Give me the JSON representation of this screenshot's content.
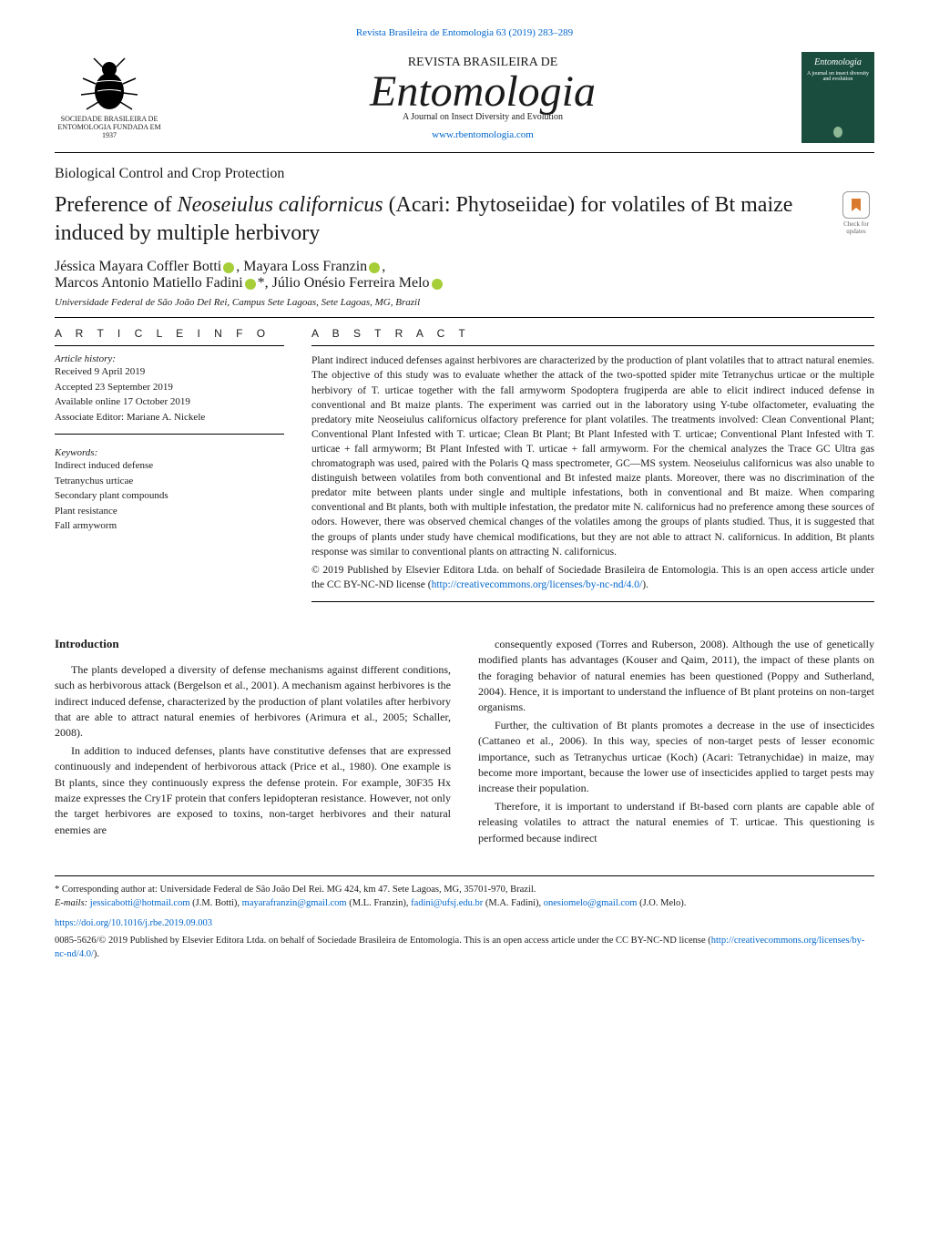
{
  "citation": "Revista Brasileira de Entomologia 63 (2019) 283–289",
  "journal": {
    "subtitle": "REVISTA BRASILEIRA DE",
    "main": "Entomologia",
    "tagline": "A Journal on Insect Diversity and Evolution",
    "url": "www.rbentomologia.com",
    "society": "SOCIEDADE BRASILEIRA DE ENTOMOLOGIA FUNDADA EM 1937",
    "cover_title": "Entomologia",
    "cover_tagline": "A journal on insect diversity and evolution"
  },
  "section": "Biological Control and Crop Protection",
  "title": "Preference of Neoseiulus californicus (Acari: Phytoseiidae) for volatiles of Bt maize induced by multiple herbivory",
  "check_updates": "Check for updates",
  "authors_line1": "Jéssica Mayara Coffler Botti , Mayara Loss Franzin ,",
  "authors_line2": "Marcos Antonio Matiello Fadini *, Júlio Onésio Ferreira Melo",
  "affiliation": "Universidade Federal de São João Del Rei, Campus Sete Lagoas, Sete Lagoas, MG, Brazil",
  "info": {
    "heading": "a r t i c l e   i n f o",
    "history_label": "Article history:",
    "received": "Received 9 April 2019",
    "accepted": "Accepted 23 September 2019",
    "online": "Available online 17 October 2019",
    "editor": "Associate Editor: Mariane A. Nickele",
    "keywords_label": "Keywords:",
    "keywords": [
      "Indirect induced defense",
      "Tetranychus urticae",
      "Secondary plant compounds",
      "Plant resistance",
      "Fall armyworm"
    ]
  },
  "abstract": {
    "heading": "a b s t r a c t",
    "text": "Plant indirect induced defenses against herbivores are characterized by the production of plant volatiles that to attract natural enemies. The objective of this study was to evaluate whether the attack of the two-spotted spider mite Tetranychus urticae or the multiple herbivory of T. urticae together with the fall armyworm Spodoptera frugiperda are able to elicit indirect induced defense in conventional and Bt maize plants. The experiment was carried out in the laboratory using Y-tube olfactometer, evaluating the predatory mite Neoseiulus californicus olfactory preference for plant volatiles. The treatments involved: Clean Conventional Plant; Conventional Plant Infested with T. urticae; Clean Bt Plant; Bt Plant Infested with T. urticae; Conventional Plant Infested with T. urticae + fall armyworm; Bt Plant Infested with T. urticae + fall armyworm. For the chemical analyzes the Trace GC Ultra gas chromatograph was used, paired with the Polaris Q mass spectrometer, GC—MS system. Neoseiulus californicus was also unable to distinguish between volatiles from both conventional and Bt infested maize plants. Moreover, there was no discrimination of the predator mite between plants under single and multiple infestations, both in conventional and Bt maize. When comparing conventional and Bt plants, both with multiple infestation, the predator mite N. californicus had no preference among these sources of odors. However, there was observed chemical changes of the volatiles among the groups of plants studied. Thus, it is suggested that the groups of plants under study have chemical modifications, but they are not able to attract N. californicus. In addition, Bt plants response was similar to conventional plants on attracting N. californicus.",
    "copyright_prefix": "© 2019 Published by Elsevier Editora Ltda. on behalf of Sociedade Brasileira de Entomologia. This is an open access article under the CC BY-NC-ND license (",
    "license_url": "http://creativecommons.org/licenses/by-nc-nd/4.0/",
    "copyright_suffix": ")."
  },
  "body": {
    "heading": "Introduction",
    "left": [
      "The plants developed a diversity of defense mechanisms against different conditions, such as herbivorous attack (Bergelson et al., 2001). A mechanism against herbivores is the indirect induced defense, characterized by the production of plant volatiles after herbivory that are able to attract natural enemies of herbivores (Arimura et al., 2005; Schaller, 2008).",
      "In addition to induced defenses, plants have constitutive defenses that are expressed continuously and independent of herbivorous attack (Price et al., 1980). One example is Bt plants, since they continuously express the defense protein. For example, 30F35 Hx maize expresses the Cry1F protein that confers lepidopteran resistance. However, not only the target herbivores are exposed to toxins, non-target herbivores and their natural enemies are"
    ],
    "right": [
      "consequently exposed (Torres and Ruberson, 2008). Although the use of genetically modified plants has advantages (Kouser and Qaim, 2011), the impact of these plants on the foraging behavior of natural enemies has been questioned (Poppy and Sutherland, 2004). Hence, it is important to understand the influence of Bt plant proteins on non-target organisms.",
      "Further, the cultivation of Bt plants promotes a decrease in the use of insecticides (Cattaneo et al., 2006). In this way, species of non-target pests of lesser economic importance, such as Tetranychus urticae (Koch) (Acari: Tetranychidae) in maize, may become more important, because the lower use of insecticides applied to target pests may increase their population.",
      "Therefore, it is important to understand if Bt-based corn plants are capable able of releasing volatiles to attract the natural enemies of T. urticae. This questioning is performed because indirect"
    ]
  },
  "footer": {
    "corr": "* Corresponding author at: Universidade Federal de São João Del Rei. MG 424, km 47. Sete Lagoas, MG, 35701-970, Brazil.",
    "emails_label": "E-mails: ",
    "emails": [
      {
        "addr": "jessicabotti@hotmail.com",
        "who": "(J.M. Botti), "
      },
      {
        "addr": "mayarafranzin@gmail.com",
        "who": "(M.L. Franzin), "
      },
      {
        "addr": "fadini@ufsj.edu.br",
        "who": "(M.A. Fadini), "
      },
      {
        "addr": "onesiomelo@gmail.com",
        "who": "(J.O. Melo)."
      }
    ],
    "doi": "https://doi.org/10.1016/j.rbe.2019.09.003",
    "copyright_prefix": "0085-5626/© 2019 Published by Elsevier Editora Ltda. on behalf of Sociedade Brasileira de Entomologia. This is an open access article under the CC BY-NC-ND license (",
    "license_url": "http://creativecommons.org/licenses/by-nc-nd/4.0/",
    "copyright_suffix": ")."
  },
  "colors": {
    "link": "#0066cc",
    "orcid": "#a6ce39",
    "cover_bg": "#1a4d3d",
    "text": "#1a1a1a"
  }
}
